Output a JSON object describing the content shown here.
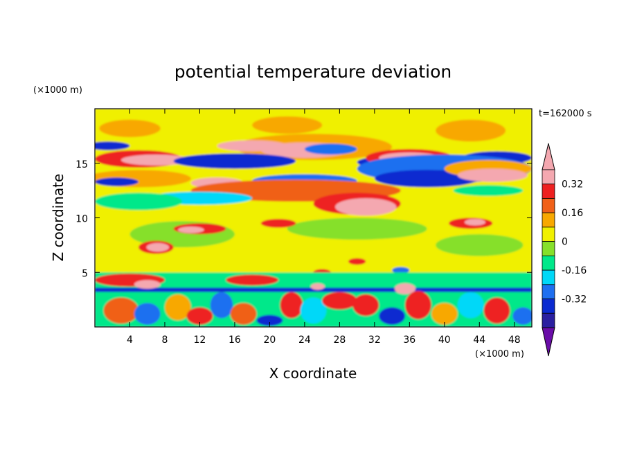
{
  "chart_data": {
    "type": "heatmap",
    "title": "potential temperature deviation",
    "xlabel": "X coordinate",
    "ylabel": "Z coordinate",
    "x_unit_label": "(×1000 m)",
    "y_unit_label": "(×1000 m)",
    "time_label": "t=162000 s",
    "xlim": [
      0,
      50
    ],
    "ylim": [
      0,
      20
    ],
    "x_ticks": [
      4,
      8,
      12,
      16,
      20,
      24,
      28,
      32,
      36,
      40,
      44,
      48
    ],
    "y_ticks": [
      5,
      10,
      15
    ],
    "colorbar": {
      "levels": [
        -0.44,
        -0.4,
        -0.32,
        -0.24,
        -0.16,
        -0.08,
        0,
        0.08,
        0.16,
        0.24,
        0.32,
        0.4
      ],
      "colors": [
        "#6a0da8",
        "#2a1fa0",
        "#0a2ad0",
        "#1e6ff0",
        "#00d8f8",
        "#00e88a",
        "#86e02a",
        "#f0f000",
        "#f8a800",
        "#f06018",
        "#ee2020",
        "#f4a8b0",
        "#f4a8b0"
      ],
      "extend": "both",
      "tick_labels": [
        "0.32",
        "0.16",
        "0",
        "-0.16",
        "-0.32"
      ],
      "tick_values": [
        0.32,
        0.16,
        0,
        -0.16,
        -0.32
      ]
    },
    "features": [
      {
        "kind": "band",
        "x": [
          0,
          50
        ],
        "z": [
          0,
          20
        ],
        "value": 0.02
      },
      {
        "kind": "band",
        "x": [
          0,
          50
        ],
        "z": [
          17.3,
          20
        ],
        "value": 0.05
      },
      {
        "kind": "band",
        "x": [
          0,
          50
        ],
        "z": [
          5.2,
          10.5
        ],
        "value": 0.02
      },
      {
        "kind": "blob",
        "cx": 4,
        "cz": 18.2,
        "rx": 3.5,
        "rz": 0.8,
        "value": 0.08
      },
      {
        "kind": "blob",
        "cx": 22,
        "cz": 18.5,
        "rx": 4,
        "rz": 0.8,
        "value": 0.08
      },
      {
        "kind": "blob",
        "cx": 43,
        "cz": 18.0,
        "rx": 4,
        "rz": 1,
        "value": 0.08
      },
      {
        "kind": "blob",
        "cx": 10,
        "cz": 8.5,
        "rx": 6,
        "rz": 1.2,
        "value": -0.05
      },
      {
        "kind": "blob",
        "cx": 30,
        "cz": 9,
        "rx": 8,
        "rz": 1,
        "value": -0.05
      },
      {
        "kind": "blob",
        "cx": 44,
        "cz": 7.5,
        "rx": 5,
        "rz": 1,
        "value": -0.06
      },
      {
        "kind": "blob",
        "cx": 25,
        "cz": 16.5,
        "rx": 9,
        "rz": 1.2,
        "value": 0.15
      },
      {
        "kind": "blob",
        "cx": 24,
        "cz": 16.2,
        "rx": 5,
        "rz": 0.7,
        "value": 0.32
      },
      {
        "kind": "blob",
        "cx": 18,
        "cz": 16.6,
        "rx": 4,
        "rz": 0.5,
        "value": 0.45
      },
      {
        "kind": "blob",
        "cx": 5,
        "cz": 15.4,
        "rx": 5,
        "rz": 0.8,
        "value": 0.3
      },
      {
        "kind": "blob",
        "cx": 7,
        "cz": 15.3,
        "rx": 4,
        "rz": 0.5,
        "value": 0.45
      },
      {
        "kind": "blob",
        "cx": 1.5,
        "cz": 16.6,
        "rx": 2.5,
        "rz": 0.4,
        "value": -0.38
      },
      {
        "kind": "blob",
        "cx": 16,
        "cz": 15.2,
        "rx": 7,
        "rz": 0.7,
        "value": -0.36
      },
      {
        "kind": "blob",
        "cx": 27,
        "cz": 16.3,
        "rx": 3,
        "rz": 0.5,
        "value": -0.3
      },
      {
        "kind": "blob",
        "cx": 33,
        "cz": 15.1,
        "rx": 3,
        "rz": 0.5,
        "value": -0.36
      },
      {
        "kind": "blob",
        "cx": 36,
        "cz": 15.5,
        "rx": 5,
        "rz": 0.8,
        "value": 0.3
      },
      {
        "kind": "blob",
        "cx": 36,
        "cz": 15.5,
        "rx": 3.5,
        "rz": 0.5,
        "value": 0.45
      },
      {
        "kind": "blob",
        "cx": 46,
        "cz": 15.5,
        "rx": 4,
        "rz": 0.6,
        "value": -0.38
      },
      {
        "kind": "blob",
        "cx": 40,
        "cz": 14.5,
        "rx": 10,
        "rz": 1.3,
        "value": -0.28
      },
      {
        "kind": "blob",
        "cx": 38,
        "cz": 13.6,
        "rx": 6,
        "rz": 0.8,
        "value": -0.4
      },
      {
        "kind": "blob",
        "cx": 45,
        "cz": 14.5,
        "rx": 5,
        "rz": 0.8,
        "value": 0.15
      },
      {
        "kind": "blob",
        "cx": 45.5,
        "cz": 13.9,
        "rx": 4,
        "rz": 0.6,
        "value": 0.45
      },
      {
        "kind": "blob",
        "cx": 45,
        "cz": 12.5,
        "rx": 4,
        "rz": 0.5,
        "value": -0.15
      },
      {
        "kind": "blob",
        "cx": 5,
        "cz": 13.6,
        "rx": 6,
        "rz": 0.8,
        "value": 0.15
      },
      {
        "kind": "blob",
        "cx": 2.5,
        "cz": 13.3,
        "rx": 2.5,
        "rz": 0.4,
        "value": -0.4
      },
      {
        "kind": "blob",
        "cx": 14,
        "cz": 13.2,
        "rx": 3,
        "rz": 0.5,
        "value": 0.35
      },
      {
        "kind": "blob",
        "cx": 24,
        "cz": 13.4,
        "rx": 6,
        "rz": 0.6,
        "value": -0.3
      },
      {
        "kind": "blob",
        "cx": 23,
        "cz": 12.5,
        "rx": 12,
        "rz": 1,
        "value": 0.18
      },
      {
        "kind": "blob",
        "cx": 30,
        "cz": 11.3,
        "rx": 5,
        "rz": 1,
        "value": 0.3
      },
      {
        "kind": "blob",
        "cx": 31,
        "cz": 11.0,
        "rx": 3.5,
        "rz": 0.8,
        "value": 0.45
      },
      {
        "kind": "blob",
        "cx": 12,
        "cz": 11.8,
        "rx": 6,
        "rz": 0.6,
        "value": -0.22
      },
      {
        "kind": "blob",
        "cx": 5,
        "cz": 11.5,
        "rx": 5,
        "rz": 0.8,
        "value": -0.12
      },
      {
        "kind": "blob",
        "cx": 12,
        "cz": 9,
        "rx": 3,
        "rz": 0.5,
        "value": 0.25
      },
      {
        "kind": "blob",
        "cx": 11,
        "cz": 8.9,
        "rx": 1.5,
        "rz": 0.3,
        "value": 0.45
      },
      {
        "kind": "blob",
        "cx": 21,
        "cz": 9.5,
        "rx": 2,
        "rz": 0.4,
        "value": 0.3
      },
      {
        "kind": "blob",
        "cx": 43,
        "cz": 9.5,
        "rx": 2.5,
        "rz": 0.5,
        "value": 0.3
      },
      {
        "kind": "blob",
        "cx": 43.5,
        "cz": 9.6,
        "rx": 1.2,
        "rz": 0.3,
        "value": 0.45
      },
      {
        "kind": "blob",
        "cx": 7,
        "cz": 7.3,
        "rx": 2,
        "rz": 0.6,
        "value": 0.3
      },
      {
        "kind": "blob",
        "cx": 7.2,
        "cz": 7.3,
        "rx": 1.3,
        "rz": 0.4,
        "value": 0.45
      },
      {
        "kind": "blob",
        "cx": 30,
        "cz": 6.0,
        "rx": 1,
        "rz": 0.3,
        "value": 0.3
      },
      {
        "kind": "blob",
        "cx": 26,
        "cz": 5.0,
        "rx": 1,
        "rz": 0.3,
        "value": 0.3
      },
      {
        "kind": "blob",
        "cx": 35,
        "cz": 5.2,
        "rx": 1,
        "rz": 0.3,
        "value": -0.3
      },
      {
        "kind": "band",
        "x": [
          0,
          50
        ],
        "z": [
          0,
          5
        ],
        "value": -0.12
      },
      {
        "kind": "band",
        "x": [
          0,
          50
        ],
        "z": [
          3.2,
          3.6
        ],
        "value": -0.35
      },
      {
        "kind": "blob",
        "cx": 4,
        "cz": 4.3,
        "rx": 4,
        "rz": 0.6,
        "value": 0.3
      },
      {
        "kind": "blob",
        "cx": 6,
        "cz": 3.9,
        "rx": 1.5,
        "rz": 0.4,
        "value": 0.45
      },
      {
        "kind": "blob",
        "cx": 18,
        "cz": 4.3,
        "rx": 3,
        "rz": 0.5,
        "value": 0.25
      },
      {
        "kind": "blob",
        "cx": 35.5,
        "cz": 3.5,
        "rx": 1.2,
        "rz": 0.5,
        "value": 0.45
      },
      {
        "kind": "blob",
        "cx": 25.5,
        "cz": 3.7,
        "rx": 0.8,
        "rz": 0.3,
        "value": 0.45
      },
      {
        "kind": "blob",
        "cx": 3,
        "cz": 1.5,
        "rx": 2,
        "rz": 1.2,
        "value": 0.2
      },
      {
        "kind": "blob",
        "cx": 6,
        "cz": 1.2,
        "rx": 1.5,
        "rz": 1,
        "value": -0.3
      },
      {
        "kind": "blob",
        "cx": 9.5,
        "cz": 1.8,
        "rx": 1.5,
        "rz": 1.2,
        "value": 0.15
      },
      {
        "kind": "blob",
        "cx": 12,
        "cz": 1,
        "rx": 1.5,
        "rz": 0.8,
        "value": 0.3
      },
      {
        "kind": "blob",
        "cx": 14.5,
        "cz": 2,
        "rx": 1.3,
        "rz": 1.2,
        "value": -0.25
      },
      {
        "kind": "blob",
        "cx": 17,
        "cz": 1.2,
        "rx": 1.5,
        "rz": 1,
        "value": 0.2
      },
      {
        "kind": "blob",
        "cx": 20,
        "cz": 0.6,
        "rx": 1.5,
        "rz": 0.5,
        "value": -0.4
      },
      {
        "kind": "blob",
        "cx": 22.5,
        "cz": 2,
        "rx": 1.3,
        "rz": 1.2,
        "value": 0.25
      },
      {
        "kind": "blob",
        "cx": 25,
        "cz": 1.5,
        "rx": 1.5,
        "rz": 1.2,
        "value": -0.2
      },
      {
        "kind": "blob",
        "cx": 28,
        "cz": 2.4,
        "rx": 2,
        "rz": 0.8,
        "value": 0.28
      },
      {
        "kind": "blob",
        "cx": 31,
        "cz": 2.0,
        "rx": 1.5,
        "rz": 1,
        "value": 0.3
      },
      {
        "kind": "blob",
        "cx": 34,
        "cz": 1,
        "rx": 1.5,
        "rz": 0.8,
        "value": -0.35
      },
      {
        "kind": "blob",
        "cx": 37,
        "cz": 2,
        "rx": 1.5,
        "rz": 1.3,
        "value": 0.25
      },
      {
        "kind": "blob",
        "cx": 40,
        "cz": 1.2,
        "rx": 1.5,
        "rz": 1,
        "value": 0.1
      },
      {
        "kind": "blob",
        "cx": 43,
        "cz": 2,
        "rx": 1.5,
        "rz": 1.2,
        "value": -0.2
      },
      {
        "kind": "blob",
        "cx": 46,
        "cz": 1.5,
        "rx": 1.5,
        "rz": 1.2,
        "value": 0.3
      },
      {
        "kind": "blob",
        "cx": 49,
        "cz": 1,
        "rx": 1.2,
        "rz": 0.8,
        "value": -0.3
      }
    ]
  }
}
